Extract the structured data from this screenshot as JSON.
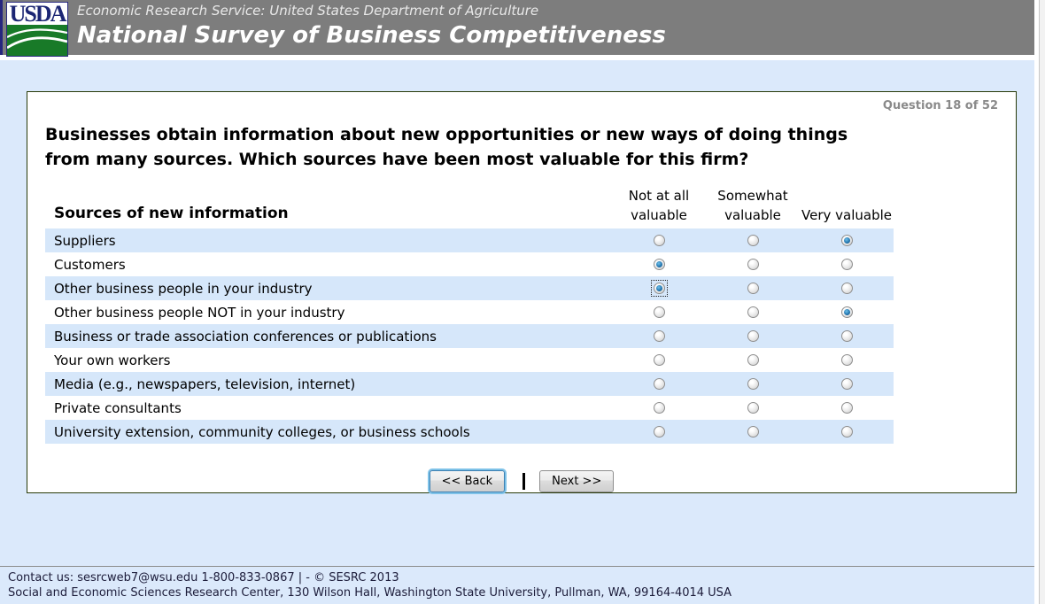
{
  "header": {
    "logo_text": "USDA",
    "agency_line": "Economic Research Service: United States Department of Agriculture",
    "survey_title": "National Survey of Business Competitiveness"
  },
  "question": {
    "progress": "Question 18 of 52",
    "text": "Businesses obtain information about new opportunities or new ways of doing things from many sources. Which sources have been most valuable for this firm?"
  },
  "table": {
    "row_header": "Sources of new information",
    "columns": [
      "Not at all valuable",
      "Somewhat valuable",
      "Very valuable"
    ],
    "rows": [
      {
        "label": "Suppliers",
        "selected": "Very valuable",
        "focused": false
      },
      {
        "label": "Customers",
        "selected": "Not at all valuable",
        "focused": false
      },
      {
        "label": "Other business people in your industry",
        "selected": "Not at all valuable",
        "focused": true
      },
      {
        "label": "Other business people NOT in your industry",
        "selected": "Very valuable",
        "focused": false
      },
      {
        "label": "Business or trade association conferences or publications",
        "selected": null,
        "focused": false
      },
      {
        "label": "Your own workers",
        "selected": null,
        "focused": false
      },
      {
        "label": "Media (e.g., newspapers, television, internet)",
        "selected": null,
        "focused": false
      },
      {
        "label": "Private consultants",
        "selected": null,
        "focused": false
      },
      {
        "label": "University extension, community colleges, or business schools",
        "selected": null,
        "focused": false
      }
    ]
  },
  "buttons": {
    "back": "<< Back",
    "next": "Next >>"
  },
  "footer": {
    "contact_prefix": "Contact us: ",
    "email": "sesrcweb7@wsu.edu",
    "contact_suffix": " 1-800-833-0867 | - © SESRC 2013",
    "address_line": "Social and Economic Sciences Research Center, 130 Wilson Hall, Washington State University, Pullman, WA, 99164-4014 USA"
  },
  "colors": {
    "header_bg": "#7d7d7d",
    "header_accent_blue": "#26267e",
    "page_bg": "#dbe9fb",
    "row_stripe": "#d6e7fa",
    "box_border": "#283b09",
    "logo_green": "#187a28",
    "logo_blue": "#1c2674",
    "radio_selected_blue": "#2173ad",
    "back_button_focus_blue": "#7ec2e8"
  }
}
